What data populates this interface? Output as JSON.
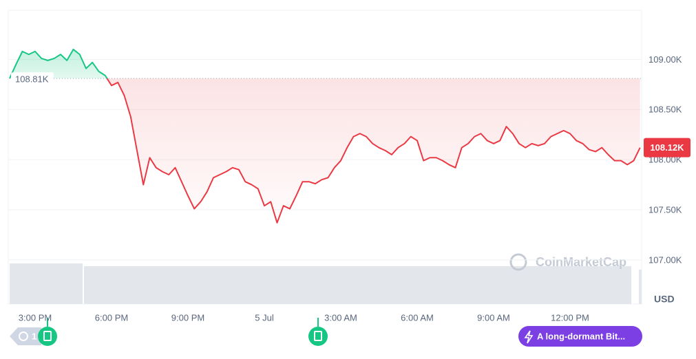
{
  "chart_data": {
    "type": "line",
    "categories": [
      null,
      null,
      null,
      null,
      "3:00 PM",
      null,
      null,
      null,
      null,
      null,
      null,
      null,
      null,
      null,
      null,
      null,
      "6:00 PM",
      null,
      null,
      null,
      null,
      null,
      null,
      null,
      null,
      null,
      null,
      null,
      "9:00 PM",
      null,
      null,
      null,
      null,
      null,
      null,
      null,
      null,
      null,
      null,
      null,
      "5 Jul",
      null,
      null,
      null,
      null,
      null,
      null,
      null,
      null,
      null,
      null,
      null,
      "3:00 AM",
      null,
      null,
      null,
      null,
      null,
      null,
      null,
      null,
      null,
      null,
      null,
      "6:00 AM",
      null,
      null,
      null,
      null,
      null,
      null,
      null,
      null,
      null,
      null,
      null,
      "9:00 AM",
      null,
      null,
      null,
      null,
      null,
      null,
      null,
      null,
      null,
      null,
      null,
      "12:00 PM",
      null,
      null,
      null,
      null,
      null,
      null,
      null,
      null,
      null,
      null,
      null
    ],
    "values": [
      108.81,
      108.95,
      109.08,
      109.05,
      109.08,
      109.01,
      108.99,
      109.01,
      109.05,
      108.99,
      109.1,
      109.05,
      108.91,
      108.97,
      108.88,
      108.84,
      108.74,
      108.77,
      108.64,
      108.43,
      108.09,
      107.75,
      108.02,
      107.92,
      107.88,
      107.85,
      107.92,
      107.78,
      107.64,
      107.51,
      107.58,
      107.68,
      107.82,
      107.85,
      107.88,
      107.92,
      107.9,
      107.78,
      107.75,
      107.71,
      107.54,
      107.58,
      107.37,
      107.54,
      107.51,
      107.64,
      107.78,
      107.78,
      107.76,
      107.8,
      107.82,
      107.92,
      107.99,
      108.12,
      108.23,
      108.26,
      108.23,
      108.16,
      108.12,
      108.09,
      108.05,
      108.12,
      108.16,
      108.23,
      108.19,
      107.99,
      108.02,
      108.02,
      107.99,
      107.95,
      107.92,
      108.12,
      108.16,
      108.23,
      108.26,
      108.19,
      108.16,
      108.19,
      108.33,
      108.26,
      108.16,
      108.12,
      108.16,
      108.14,
      108.16,
      108.23,
      108.26,
      108.29,
      108.26,
      108.19,
      108.16,
      108.1,
      108.08,
      108.12,
      108.05,
      107.99,
      107.99,
      107.95,
      107.99,
      108.12
    ],
    "colors": {
      "above": "#16c784",
      "below": "#ea3943"
    },
    "baseline": {
      "value": 108.81,
      "label": "108.81K"
    },
    "last_price": {
      "value": 108.12,
      "label": "108.12K"
    },
    "ylim": [
      106.56,
      109.49
    ],
    "yticks": [
      {
        "value": 107,
        "label": "107.00K"
      },
      {
        "value": 107.5,
        "label": "107.50K"
      },
      {
        "value": 108,
        "label": "108.00K"
      },
      {
        "value": 108.5,
        "label": "108.50K"
      },
      {
        "value": 109,
        "label": "109.00K"
      }
    ],
    "y_axis_label": "USD",
    "grid": true,
    "watermark": "CoinMarketCap",
    "history_badge": "1",
    "news_pill": "A long-dormant Bit..."
  }
}
